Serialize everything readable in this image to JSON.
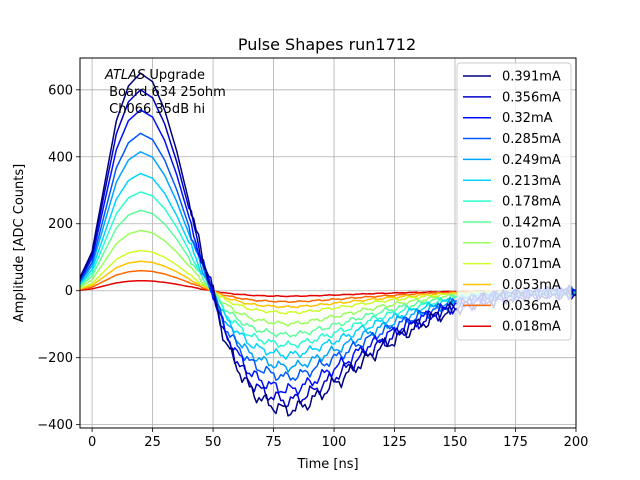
{
  "chart_data": {
    "type": "line",
    "title": "Pulse Shapes run1712",
    "xlabel": "Time [ns]",
    "ylabel": "Amplitude [ADC Counts]",
    "xlim": [
      -5,
      200
    ],
    "ylim": [
      -410,
      695
    ],
    "xticks": [
      0,
      25,
      50,
      75,
      100,
      125,
      150,
      175,
      200
    ],
    "yticks": [
      -400,
      -200,
      0,
      200,
      400,
      600
    ],
    "grid": true,
    "legend_position": "top-right",
    "annotation": {
      "prefix_italic": "ATLAS",
      "prefix_rest": " Upgrade",
      "line2": " Board 634 25ohm",
      "line3": " Ch066 35dB hi"
    },
    "shape_knots": {
      "t": [
        -5,
        0,
        5,
        10,
        15,
        20,
        25,
        30,
        35,
        40,
        45,
        50,
        55,
        60,
        65,
        70,
        75,
        80,
        85,
        90,
        95,
        100,
        105,
        110,
        120,
        130,
        140,
        150,
        160,
        170,
        180,
        190,
        200
      ],
      "v": [
        0.06,
        0.18,
        0.48,
        0.78,
        0.94,
        1.0,
        0.96,
        0.83,
        0.64,
        0.41,
        0.18,
        -0.01,
        -0.23,
        -0.35,
        -0.45,
        -0.5,
        -0.53,
        -0.55,
        -0.54,
        -0.51,
        -0.47,
        -0.43,
        -0.39,
        -0.34,
        -0.26,
        -0.19,
        -0.13,
        -0.08,
        -0.05,
        -0.03,
        -0.02,
        -0.01,
        -0.01
      ]
    },
    "series": [
      {
        "name": "0.391mA",
        "color": "#00007f",
        "peak": 650
      },
      {
        "name": "0.356mA",
        "color": "#0000c9",
        "peak": 600
      },
      {
        "name": "0.32mA",
        "color": "#0010ff",
        "peak": 540
      },
      {
        "name": "0.285mA",
        "color": "#0058ff",
        "peak": 470
      },
      {
        "name": "0.249mA",
        "color": "#00a4ff",
        "peak": 415
      },
      {
        "name": "0.213mA",
        "color": "#00d4ff",
        "peak": 350
      },
      {
        "name": "0.178mA",
        "color": "#29ffce",
        "peak": 295
      },
      {
        "name": "0.142mA",
        "color": "#5dff9a",
        "peak": 240
      },
      {
        "name": "0.107mA",
        "color": "#9aff5d",
        "peak": 180
      },
      {
        "name": "0.071mA",
        "color": "#ceff29",
        "peak": 120
      },
      {
        "name": "0.053mA",
        "color": "#ffc400",
        "peak": 88
      },
      {
        "name": "0.036mA",
        "color": "#ff6800",
        "peak": 60
      },
      {
        "name": "0.018mA",
        "color": "#e40000",
        "peak": 30
      }
    ]
  }
}
